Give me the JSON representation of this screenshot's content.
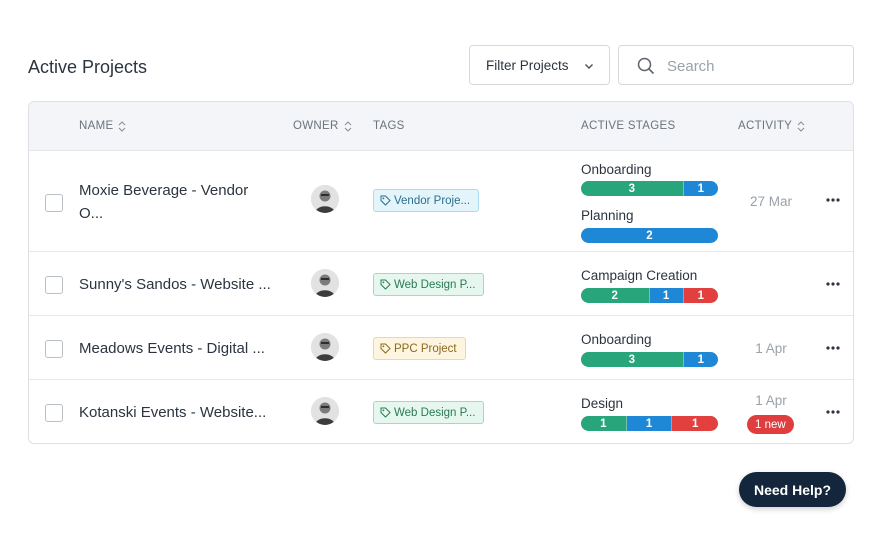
{
  "page_title": "Active Projects",
  "filter": {
    "label": "Filter Projects"
  },
  "search": {
    "placeholder": "Search",
    "value": ""
  },
  "columns": {
    "name": "NAME",
    "owner": "OWNER",
    "tags": "TAGS",
    "stages": "ACTIVE STAGES",
    "activity": "ACTIVITY"
  },
  "colors": {
    "green": "#28a57a",
    "blue": "#1f88d6",
    "red": "#e23f3f",
    "help_bg": "#13263b"
  },
  "rows": [
    {
      "name_line1": "Moxie Beverage - Vendor",
      "name_line2": "O...",
      "tag": "Vendor Proje...",
      "stages": [
        {
          "label": "Onboarding",
          "segments": [
            {
              "value": "3",
              "color": "green"
            },
            {
              "value": "1",
              "color": "blue"
            }
          ]
        },
        {
          "label": "Planning",
          "segments": [
            {
              "value": "2",
              "color": "blue"
            }
          ]
        }
      ],
      "date": "27 Mar"
    },
    {
      "name_line1": "Sunny's Sandos - Website ...",
      "tag": "Web Design P...",
      "stages": [
        {
          "label": "Campaign Creation",
          "segments": [
            {
              "value": "2",
              "color": "green"
            },
            {
              "value": "1",
              "color": "blue"
            },
            {
              "value": "1",
              "color": "red"
            }
          ]
        }
      ],
      "date": ""
    },
    {
      "name_line1": "Meadows Events - Digital ...",
      "tag": "PPC Project",
      "stages": [
        {
          "label": "Onboarding",
          "segments": [
            {
              "value": "3",
              "color": "green"
            },
            {
              "value": "1",
              "color": "blue"
            }
          ]
        }
      ],
      "date": "1 Apr"
    },
    {
      "name_line1": "Kotanski Events - Website...",
      "tag": "Web Design P...",
      "stages": [
        {
          "label": "Design",
          "segments": [
            {
              "value": "1",
              "color": "green"
            },
            {
              "value": "1",
              "color": "blue"
            },
            {
              "value": "1",
              "color": "red"
            }
          ]
        }
      ],
      "date": "1 Apr",
      "badge": "1 new"
    }
  ],
  "help": {
    "label": "Need Help?"
  }
}
